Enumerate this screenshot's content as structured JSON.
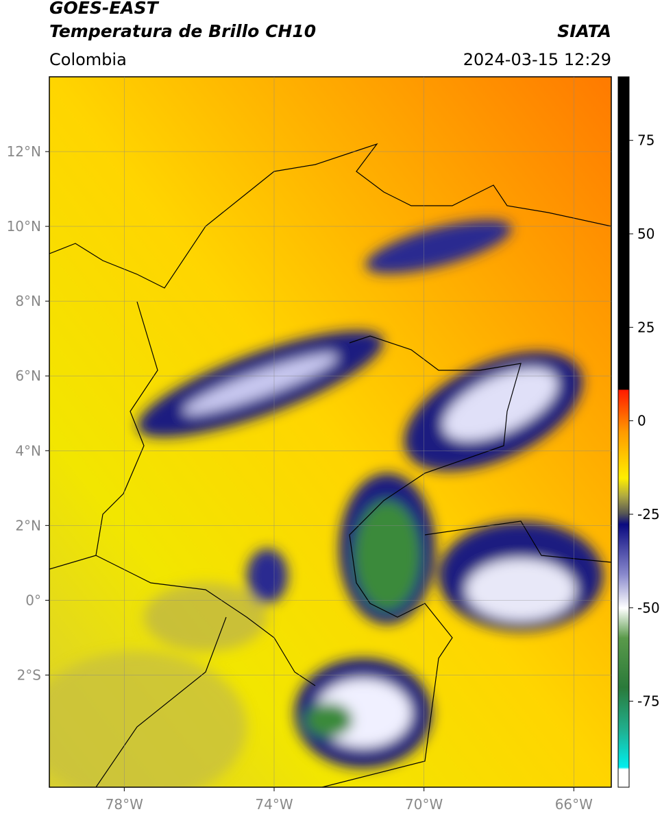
{
  "header": {
    "title": "GOES-EAST",
    "subtitle": "Temperatura de Brillo CH10",
    "region": "Colombia",
    "source": "SIATA",
    "datetime": "2024-03-15 12:29"
  },
  "map": {
    "lon_range": [
      -80,
      -65
    ],
    "lat_range": [
      -5,
      14
    ],
    "grid": true,
    "lon_ticks": [
      {
        "value": -78,
        "label": "78°W"
      },
      {
        "value": -74,
        "label": "74°W"
      },
      {
        "value": -70,
        "label": "70°W"
      },
      {
        "value": -66,
        "label": "66°W"
      }
    ],
    "lat_ticks": [
      {
        "value": 12,
        "label": "12°N"
      },
      {
        "value": 10,
        "label": "10°N"
      },
      {
        "value": 8,
        "label": "8°N"
      },
      {
        "value": 6,
        "label": "6°N"
      },
      {
        "value": 4,
        "label": "4°N"
      },
      {
        "value": 2,
        "label": "2°N"
      },
      {
        "value": 0,
        "label": "0°"
      },
      {
        "value": -2,
        "label": "2°S"
      }
    ]
  },
  "colorbar": {
    "range": [
      -98,
      92
    ],
    "ticks": [
      75,
      50,
      25,
      0,
      -25,
      -50,
      -75
    ]
  }
}
